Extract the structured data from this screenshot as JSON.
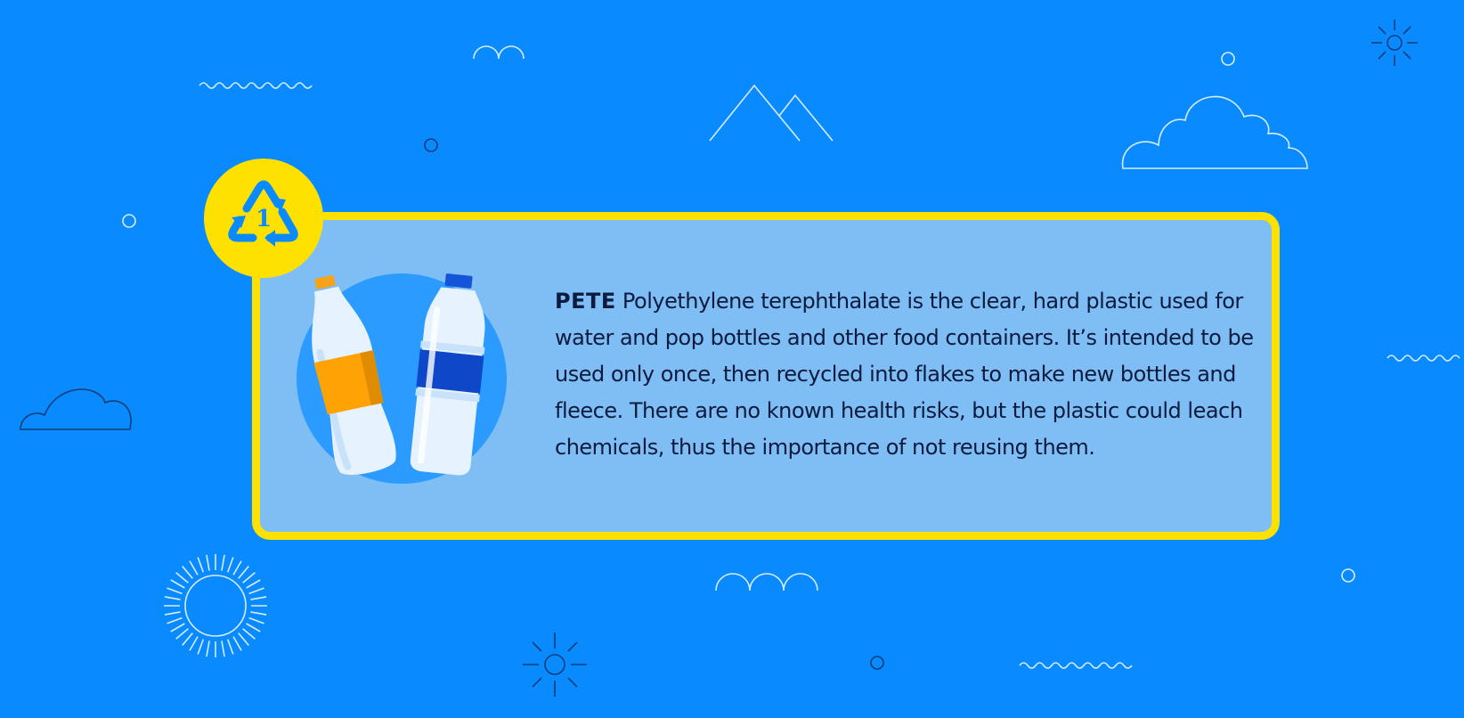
{
  "colors": {
    "background": "#0a8aff",
    "card": "#7fbdf5",
    "accent": "#ffe100",
    "text": "#0d1b3e",
    "decor_line": "#d6ecff"
  },
  "badge": {
    "icon": "recycle-triangle-icon",
    "number": "1"
  },
  "card": {
    "illustration": "plastic-bottles-icon",
    "term": "PETE",
    "description": "Polyethylene terephthalate is the clear, hard plastic used for water and pop bottles and other food containers. It’s intended to be used only once, then recycled into flakes to make new bottles and fleece. There are no known health risks, but the plastic could leach chemicals, thus the importance of not reusing them."
  }
}
